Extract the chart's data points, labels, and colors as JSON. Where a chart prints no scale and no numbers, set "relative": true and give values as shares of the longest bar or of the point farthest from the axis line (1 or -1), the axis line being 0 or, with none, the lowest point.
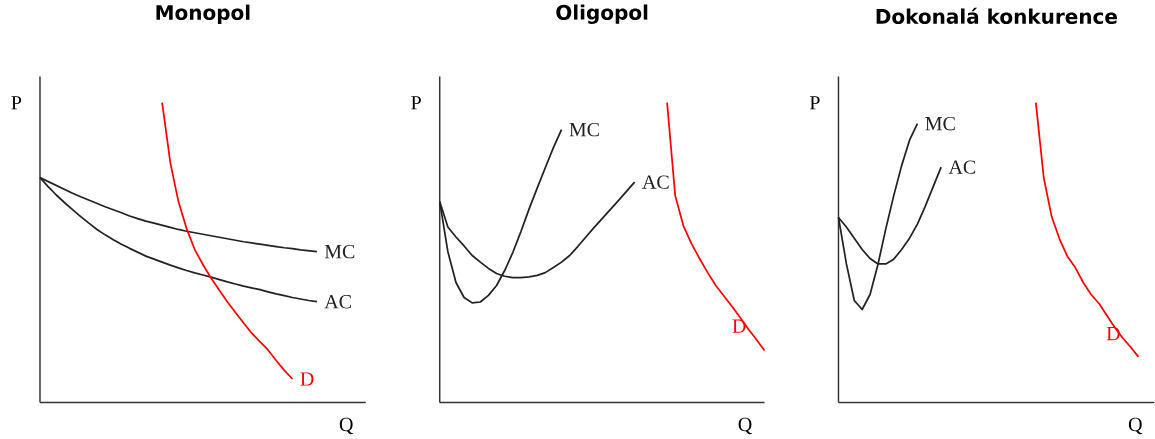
{
  "chart_data": [
    {
      "type": "line",
      "title": "Monopol",
      "xlabel": "Q",
      "ylabel": "P",
      "relative": true,
      "categories": [
        null,
        null,
        null,
        null,
        null,
        null,
        null,
        null,
        null,
        null,
        null,
        null,
        null,
        null,
        null,
        null,
        null,
        null,
        null,
        null,
        null,
        null,
        null,
        null,
        null,
        null,
        null,
        null,
        null,
        null,
        null,
        null,
        null,
        null,
        null,
        null,
        null,
        null,
        null,
        null,
        null
      ],
      "series": [
        {
          "name": "MC",
          "color": "#222222",
          "values": [
            0.75,
            0.737,
            0.724,
            0.711,
            0.698,
            0.686,
            0.675,
            0.664,
            0.653,
            0.643,
            0.633,
            0.622,
            0.613,
            0.605,
            0.598,
            0.591,
            0.584,
            0.577,
            0.571,
            0.566,
            0.561,
            0.556,
            0.551,
            0.546,
            0.541,
            0.536,
            0.532,
            0.528,
            0.524,
            0.52,
            0.516,
            0.513,
            0.509,
            0.506,
            0.503,
            null,
            null,
            null,
            null,
            null,
            null
          ]
        },
        {
          "name": "AC",
          "color": "#222222",
          "values": [
            0.75,
            0.72,
            0.692,
            0.667,
            0.643,
            0.62,
            0.598,
            0.577,
            0.559,
            0.543,
            0.528,
            0.514,
            0.501,
            0.488,
            0.478,
            0.468,
            0.458,
            0.449,
            0.44,
            0.432,
            0.425,
            0.418,
            0.41,
            0.402,
            0.395,
            0.388,
            0.382,
            0.376,
            0.369,
            0.362,
            0.356,
            0.35,
            0.345,
            0.34,
            0.336,
            null,
            null,
            null,
            null,
            null,
            null
          ]
        },
        {
          "name": "D",
          "color": "#ff0000",
          "values": [
            null,
            null,
            null,
            null,
            null,
            null,
            null,
            null,
            null,
            null,
            null,
            null,
            null,
            null,
            null,
            1,
            0.8,
            0.67,
            0.58,
            0.51,
            0.46,
            0.415,
            0.375,
            0.336,
            0.3,
            0.265,
            0.231,
            0.203,
            0.175,
            0.14,
            0.107,
            0.078,
            null,
            null,
            null,
            null,
            null,
            null,
            null,
            null,
            null
          ]
        }
      ]
    },
    {
      "type": "line",
      "title": "Oligopol",
      "xlabel": "Q",
      "ylabel": "P",
      "relative": true,
      "categories": [
        null,
        null,
        null,
        null,
        null,
        null,
        null,
        null,
        null,
        null,
        null,
        null,
        null,
        null,
        null,
        null,
        null,
        null,
        null,
        null,
        null,
        null,
        null,
        null,
        null,
        null,
        null,
        null,
        null,
        null,
        null,
        null,
        null,
        null,
        null,
        null,
        null,
        null,
        null,
        null,
        null
      ],
      "series": [
        {
          "name": "MC",
          "color": "#222222",
          "values": [
            0.67,
            0.503,
            0.4,
            0.35,
            0.332,
            0.335,
            0.357,
            0.39,
            0.44,
            0.5,
            0.57,
            0.645,
            0.715,
            0.783,
            0.85,
            0.91,
            null,
            null,
            null,
            null,
            null,
            null,
            null,
            null,
            null,
            null,
            null,
            null,
            null,
            null,
            null,
            null,
            null,
            null,
            null,
            null,
            null,
            null,
            null,
            null,
            null
          ]
        },
        {
          "name": "AC",
          "color": "#222222",
          "values": [
            0.67,
            0.585,
            0.552,
            0.522,
            0.49,
            0.468,
            0.447,
            0.43,
            0.421,
            0.416,
            0.416,
            0.419,
            0.424,
            0.433,
            0.45,
            0.468,
            0.49,
            0.52,
            0.552,
            0.583,
            0.613,
            0.643,
            0.673,
            0.704,
            0.735,
            null,
            null,
            null,
            null,
            null,
            null,
            null,
            null,
            null,
            null,
            null,
            null,
            null,
            null,
            null,
            null
          ]
        },
        {
          "name": "D",
          "color": "#ff0000",
          "values": [
            null,
            null,
            null,
            null,
            null,
            null,
            null,
            null,
            null,
            null,
            null,
            null,
            null,
            null,
            null,
            null,
            null,
            null,
            null,
            null,
            null,
            null,
            null,
            null,
            null,
            null,
            null,
            null,
            1,
            0.69,
            0.59,
            0.53,
            0.48,
            0.433,
            0.39,
            0.355,
            0.32,
            0.283,
            0.245,
            0.21,
            0.173
          ]
        }
      ]
    },
    {
      "type": "line",
      "title": "Dokonalá konkurence",
      "xlabel": "Q",
      "ylabel": "P",
      "relative": true,
      "categories": [
        null,
        null,
        null,
        null,
        null,
        null,
        null,
        null,
        null,
        null,
        null,
        null,
        null,
        null,
        null,
        null,
        null,
        null,
        null,
        null,
        null,
        null,
        null,
        null,
        null,
        null,
        null,
        null,
        null,
        null,
        null,
        null,
        null,
        null,
        null,
        null,
        null,
        null,
        null,
        null,
        null
      ],
      "series": [
        {
          "name": "MC",
          "color": "#222222",
          "values": [
            0.617,
            0.463,
            0.34,
            0.31,
            0.36,
            0.46,
            0.58,
            0.69,
            0.79,
            0.875,
            0.93,
            null,
            null,
            null,
            null,
            null,
            null,
            null,
            null,
            null,
            null,
            null,
            null,
            null,
            null,
            null,
            null,
            null,
            null,
            null,
            null,
            null,
            null,
            null,
            null,
            null,
            null,
            null,
            null,
            null,
            null
          ]
        },
        {
          "name": "AC",
          "color": "#222222",
          "values": [
            0.617,
            0.585,
            0.548,
            0.51,
            0.48,
            0.462,
            0.462,
            0.478,
            0.51,
            0.548,
            0.595,
            0.655,
            0.72,
            0.785,
            null,
            null,
            null,
            null,
            null,
            null,
            null,
            null,
            null,
            null,
            null,
            null,
            null,
            null,
            null,
            null,
            null,
            null,
            null,
            null,
            null,
            null,
            null,
            null,
            null,
            null,
            null
          ]
        },
        {
          "name": "D",
          "color": "#ff0000",
          "values": [
            null,
            null,
            null,
            null,
            null,
            null,
            null,
            null,
            null,
            null,
            null,
            null,
            null,
            null,
            null,
            null,
            null,
            null,
            null,
            null,
            null,
            null,
            null,
            null,
            null,
            1,
            0.75,
            0.62,
            0.545,
            0.487,
            0.45,
            0.4,
            0.36,
            0.33,
            0.29,
            0.25,
            0.215,
            0.185,
            0.152,
            null,
            null
          ]
        }
      ]
    }
  ]
}
